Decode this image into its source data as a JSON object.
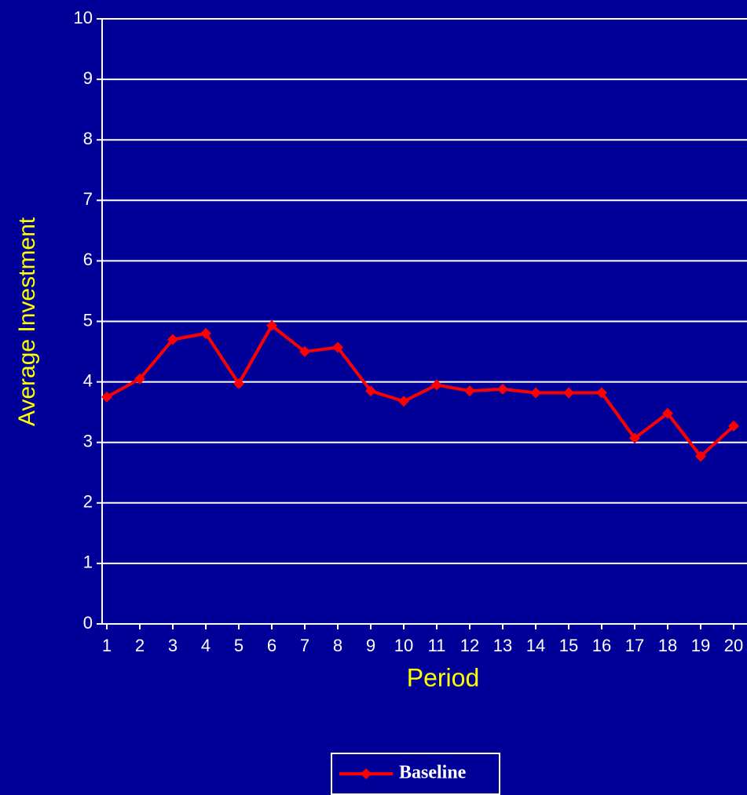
{
  "chart_data": {
    "type": "line",
    "x": [
      1,
      2,
      3,
      4,
      5,
      6,
      7,
      8,
      9,
      10,
      11,
      12,
      13,
      14,
      15,
      16,
      17,
      18,
      19,
      20
    ],
    "series": [
      {
        "name": "Baseline",
        "color": "#ff0000",
        "values": [
          3.75,
          4.05,
          4.7,
          4.8,
          3.97,
          4.93,
          4.5,
          4.57,
          3.85,
          3.68,
          3.95,
          3.85,
          3.88,
          3.82,
          3.82,
          3.82,
          3.07,
          3.48,
          2.77,
          3.27
        ]
      }
    ],
    "xlabel": "Period",
    "ylabel": "Average Investment",
    "xlim": [
      1,
      20
    ],
    "xticks": [
      1,
      2,
      3,
      4,
      5,
      6,
      7,
      8,
      9,
      10,
      11,
      12,
      13,
      14,
      15,
      16,
      17,
      18,
      19,
      20
    ],
    "ylim": [
      0,
      10
    ],
    "yticks": [
      0,
      1,
      2,
      3,
      4,
      5,
      6,
      7,
      8,
      9,
      10
    ],
    "grid": true,
    "legend": "bottom"
  }
}
